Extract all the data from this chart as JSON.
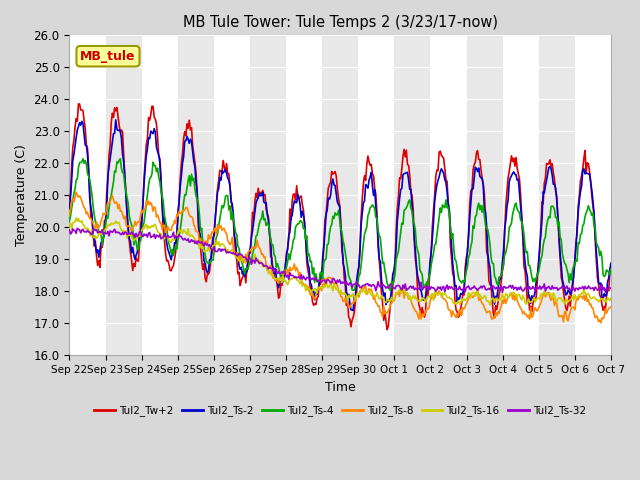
{
  "title": "MB Tule Tower: Tule Temps 2 (3/23/17-now)",
  "xlabel": "Time",
  "ylabel": "Temperature (C)",
  "ylim": [
    16.0,
    26.0
  ],
  "yticks": [
    16.0,
    17.0,
    18.0,
    19.0,
    20.0,
    21.0,
    22.0,
    23.0,
    24.0,
    25.0,
    26.0
  ],
  "xtick_labels": [
    "Sep 22",
    "Sep 23",
    "Sep 24",
    "Sep 25",
    "Sep 26",
    "Sep 27",
    "Sep 28",
    "Sep 29",
    "Sep 30",
    "Oct 1",
    "Oct 2",
    "Oct 3",
    "Oct 4",
    "Oct 5",
    "Oct 6",
    "Oct 7"
  ],
  "series_colors": [
    "#dd0000",
    "#0000cc",
    "#00aa00",
    "#ff8800",
    "#cccc00",
    "#9900cc"
  ],
  "series_labels": [
    "Tul2_Tw+2",
    "Tul2_Ts-2",
    "Tul2_Ts-4",
    "Tul2_Ts-8",
    "Tul2_Ts-16",
    "Tul2_Ts-32"
  ],
  "legend_label": "MB_tule",
  "fig_bg_color": "#d8d8d8",
  "plot_bg_color": "#e8e8e8",
  "alt_band_color": "#d0d0d0",
  "grid_color": "#ffffff",
  "line_width": 1.2
}
